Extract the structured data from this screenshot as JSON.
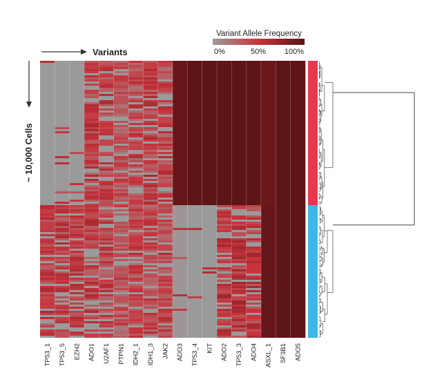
{
  "chart_data": {
    "type": "heatmap",
    "x_title": "Variants",
    "y_title": "~ 10,000 Cells",
    "colorbar": {
      "title": "Variant Allele Frequency",
      "tick_labels": [
        "0%",
        "50%",
        "100%"
      ],
      "range": [
        0,
        100
      ],
      "unit": "%",
      "colors": {
        "low": "#9a9a9a",
        "mid": "#c8333c",
        "high": "#5a1416"
      }
    },
    "variants": [
      "TP53_1",
      "TP53_5",
      "EZH2",
      "ADO1",
      "U2AF1",
      "PTPN1",
      "IDH2_1",
      "IDH1_3",
      "JAK2",
      "ADO3",
      "TP53_4",
      "KIT",
      "ADO2",
      "TP53_3",
      "ADO4",
      "ASXL_1",
      "SF3B1",
      "ADO5"
    ],
    "clusters": [
      {
        "color": "#e8384f",
        "fraction": 0.52
      },
      {
        "color": "#3db7e8",
        "fraction": 0.48
      }
    ],
    "block_mean_vaf": [
      {
        "cluster": 1,
        "values": [
          0,
          0,
          0,
          45,
          42,
          35,
          40,
          45,
          42,
          95,
          98,
          98,
          98,
          98,
          98,
          92,
          98,
          98
        ]
      },
      {
        "cluster": 2,
        "values": [
          45,
          45,
          45,
          45,
          40,
          35,
          40,
          38,
          42,
          2,
          0,
          0,
          50,
          52,
          50,
          95,
          98,
          98
        ]
      }
    ]
  }
}
